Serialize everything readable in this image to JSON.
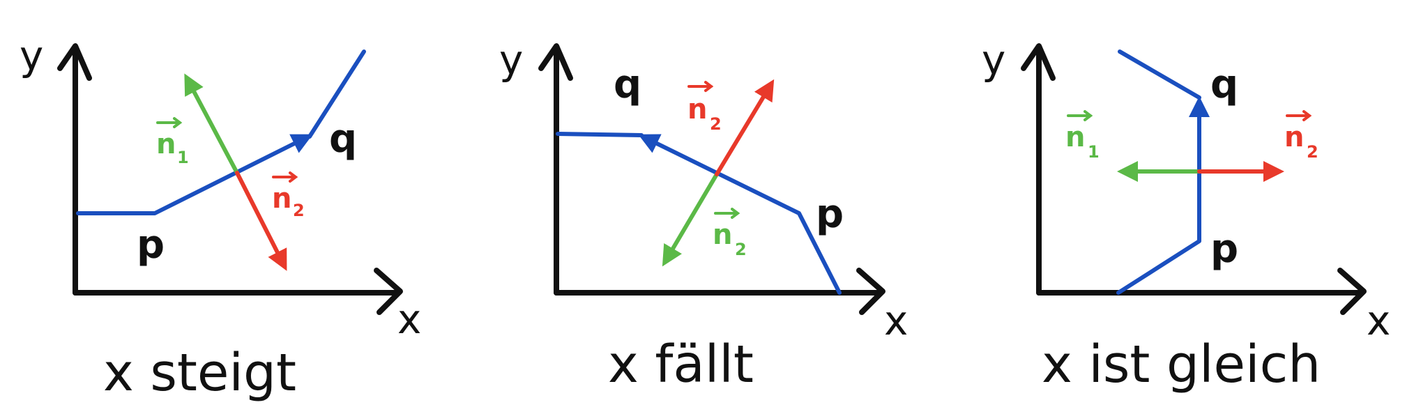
{
  "colors": {
    "axis": "#111111",
    "path": "#1a4fbf",
    "n1": "#5bb947",
    "n2": "#e8392a"
  },
  "panels": [
    {
      "caption": "x steigt",
      "axis_x": "x",
      "axis_y": "y",
      "p_label": "p",
      "q_label": "q",
      "n1": {
        "base": "n",
        "sub": "1"
      },
      "n2": {
        "base": "n",
        "sub": "2"
      }
    },
    {
      "caption": "x fällt",
      "axis_x": "x",
      "axis_y": "y",
      "p_label": "p",
      "q_label": "q",
      "n1": {
        "base": "n",
        "sub": "2"
      },
      "n2": {
        "base": "n",
        "sub": "2"
      }
    },
    {
      "caption": "x ist gleich",
      "axis_x": "x",
      "axis_y": "y",
      "p_label": "p",
      "q_label": "q",
      "n1": {
        "base": "n",
        "sub": "1"
      },
      "n2": {
        "base": "n",
        "sub": "2"
      }
    }
  ]
}
